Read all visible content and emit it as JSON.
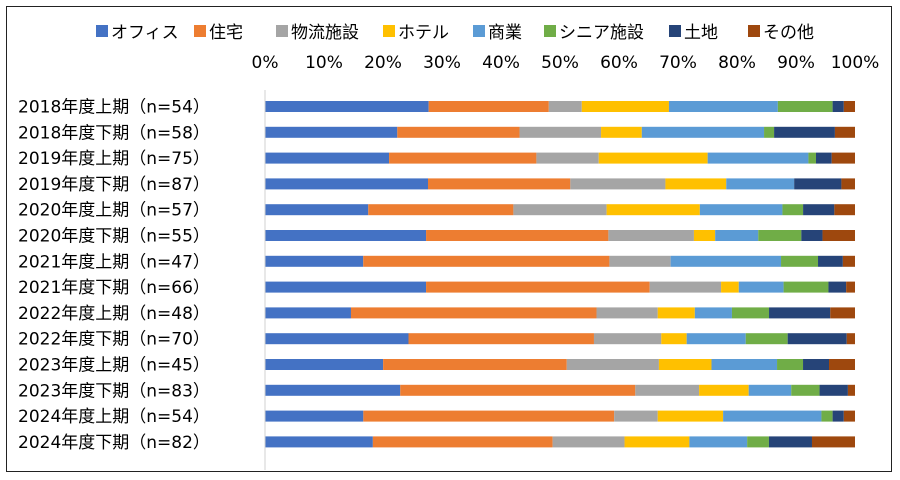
{
  "chart_data": {
    "type": "bar",
    "orientation": "horizontal",
    "stacked": "percent",
    "title": "",
    "xlabel": "",
    "ylabel": "",
    "xlim": [
      0,
      100
    ],
    "x_ticks": [
      "0%",
      "10%",
      "20%",
      "30%",
      "40%",
      "50%",
      "60%",
      "70%",
      "80%",
      "90%",
      "100%"
    ],
    "legend_position": "top",
    "grid": false,
    "categories": [
      "2018年度上期（n=54）",
      "2018年度下期（n=58）",
      "2019年度上期（n=75）",
      "2019年度下期（n=87）",
      "2020年度上期（n=57）",
      "2020年度下期（n=55）",
      "2021年度上期（n=47）",
      "2021年度下期（n=66）",
      "2022年度上期（n=48）",
      "2022年度下期（n=70）",
      "2023年度上期（n=45）",
      "2023年度下期（n=83）",
      "2024年度上期（n=54）",
      "2024年度下期（n=82）"
    ],
    "series": [
      {
        "name": "オフィス",
        "color": "#4472C4",
        "values": [
          27.8,
          22.4,
          21.3,
          27.6,
          17.5,
          27.3,
          17.0,
          27.3,
          14.6,
          24.3,
          20.0,
          22.9,
          16.7,
          18.3
        ]
      },
      {
        "name": "住宅",
        "color": "#ED7D31",
        "values": [
          20.4,
          20.7,
          25.3,
          24.1,
          24.6,
          30.9,
          42.6,
          37.9,
          41.7,
          31.4,
          31.1,
          39.8,
          42.6,
          30.5
        ]
      },
      {
        "name": "物流施設",
        "color": "#A5A5A5",
        "values": [
          5.6,
          13.8,
          10.7,
          16.1,
          15.8,
          14.5,
          10.6,
          12.1,
          10.4,
          11.4,
          15.6,
          10.8,
          7.4,
          12.2
        ]
      },
      {
        "name": "ホテル",
        "color": "#FFC000",
        "values": [
          14.8,
          6.9,
          18.7,
          10.3,
          15.8,
          3.6,
          0.0,
          3.0,
          6.3,
          4.3,
          8.9,
          8.4,
          11.1,
          11.0
        ]
      },
      {
        "name": "商業",
        "color": "#5B9BD5",
        "values": [
          18.5,
          20.7,
          17.3,
          11.5,
          14.0,
          7.3,
          19.1,
          7.6,
          6.3,
          10.0,
          11.1,
          7.2,
          16.7,
          9.8
        ]
      },
      {
        "name": "シニア施設",
        "color": "#70AD47",
        "values": [
          9.3,
          1.7,
          1.3,
          0.0,
          3.5,
          7.3,
          6.4,
          7.6,
          6.3,
          7.1,
          4.4,
          4.8,
          1.9,
          3.7
        ]
      },
      {
        "name": "土地",
        "color": "#264478",
        "values": [
          1.9,
          10.3,
          2.7,
          8.0,
          5.3,
          3.6,
          4.3,
          3.0,
          10.4,
          10.0,
          4.4,
          4.8,
          1.9,
          7.3
        ]
      },
      {
        "name": "その他",
        "color": "#9E480E",
        "values": [
          1.9,
          3.4,
          4.0,
          2.3,
          3.5,
          5.5,
          2.1,
          1.5,
          4.2,
          1.4,
          4.4,
          1.2,
          1.9,
          7.3
        ]
      }
    ]
  }
}
